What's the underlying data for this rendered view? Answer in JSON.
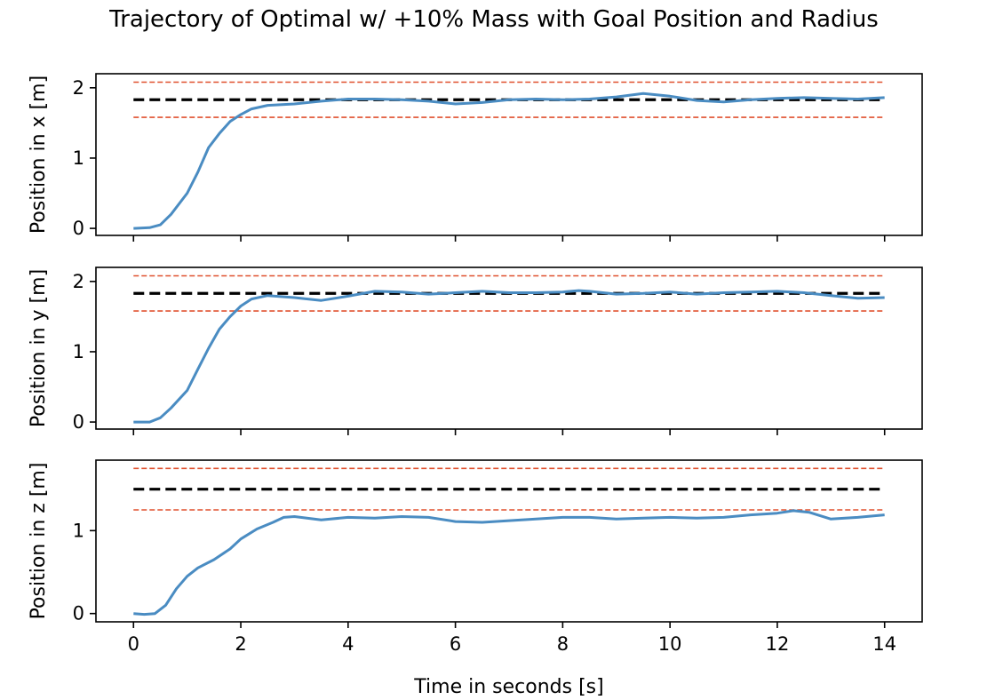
{
  "title": "Trajectory of Optimal w/ +10% Mass with Goal Position and Radius",
  "xlabel": "Time in seconds [s]",
  "colors": {
    "trajectory": "#4a8cc2",
    "goal": "#000000",
    "radius": "#e0502e"
  },
  "chart_data": [
    {
      "type": "line",
      "ylabel": "Position in x [m]",
      "xlim": [
        -0.7,
        14.7
      ],
      "ylim": [
        -0.1,
        2.2
      ],
      "xticks": [
        0,
        2,
        4,
        6,
        8,
        10,
        12,
        14
      ],
      "yticks": [
        0,
        1,
        2
      ],
      "goal": 1.83,
      "radius_lines": [
        1.58,
        2.08
      ],
      "series": [
        {
          "x": [
            0,
            0.3,
            0.5,
            0.7,
            1.0,
            1.2,
            1.4,
            1.6,
            1.8,
            2.0,
            2.2,
            2.5,
            3.0,
            3.5,
            4.0,
            4.5,
            5.0,
            5.5,
            6.0,
            6.5,
            7.0,
            7.5,
            8.0,
            8.5,
            9.0,
            9.5,
            10.0,
            10.5,
            11.0,
            11.5,
            12.0,
            12.5,
            13.0,
            13.5,
            14.0
          ],
          "y": [
            0.0,
            0.01,
            0.05,
            0.2,
            0.5,
            0.8,
            1.15,
            1.35,
            1.52,
            1.62,
            1.7,
            1.75,
            1.77,
            1.81,
            1.84,
            1.84,
            1.83,
            1.81,
            1.77,
            1.79,
            1.83,
            1.84,
            1.83,
            1.84,
            1.87,
            1.92,
            1.88,
            1.82,
            1.8,
            1.83,
            1.85,
            1.86,
            1.85,
            1.84,
            1.86
          ]
        }
      ]
    },
    {
      "type": "line",
      "ylabel": "Position in y [m]",
      "xlim": [
        -0.7,
        14.7
      ],
      "ylim": [
        -0.1,
        2.2
      ],
      "xticks": [
        0,
        2,
        4,
        6,
        8,
        10,
        12,
        14
      ],
      "yticks": [
        0,
        1,
        2
      ],
      "goal": 1.83,
      "radius_lines": [
        1.58,
        2.08
      ],
      "series": [
        {
          "x": [
            0,
            0.3,
            0.5,
            0.7,
            1.0,
            1.2,
            1.4,
            1.6,
            1.8,
            2.0,
            2.2,
            2.5,
            3.0,
            3.5,
            4.0,
            4.5,
            5.0,
            5.5,
            6.0,
            6.5,
            7.0,
            7.5,
            8.0,
            8.3,
            8.5,
            9.0,
            9.5,
            10.0,
            10.5,
            11.0,
            11.5,
            12.0,
            12.5,
            13.0,
            13.5,
            14.0
          ],
          "y": [
            0.0,
            0.0,
            0.06,
            0.2,
            0.45,
            0.75,
            1.05,
            1.32,
            1.5,
            1.65,
            1.75,
            1.8,
            1.77,
            1.73,
            1.79,
            1.86,
            1.85,
            1.82,
            1.84,
            1.86,
            1.84,
            1.84,
            1.85,
            1.87,
            1.86,
            1.82,
            1.83,
            1.85,
            1.82,
            1.84,
            1.85,
            1.86,
            1.84,
            1.8,
            1.76,
            1.77
          ]
        }
      ]
    },
    {
      "type": "line",
      "ylabel": "Position in z [m]",
      "xlim": [
        -0.7,
        14.7
      ],
      "ylim": [
        -0.1,
        1.85
      ],
      "xticks": [
        0,
        2,
        4,
        6,
        8,
        10,
        12,
        14
      ],
      "yticks": [
        0,
        1
      ],
      "goal": 1.5,
      "radius_lines": [
        1.25,
        1.75
      ],
      "series": [
        {
          "x": [
            0,
            0.2,
            0.4,
            0.6,
            0.8,
            1.0,
            1.2,
            1.5,
            1.8,
            2.0,
            2.3,
            2.6,
            2.8,
            3.0,
            3.5,
            4.0,
            4.5,
            5.0,
            5.5,
            6.0,
            6.5,
            7.0,
            7.5,
            8.0,
            8.5,
            9.0,
            9.5,
            10.0,
            10.5,
            11.0,
            11.5,
            12.0,
            12.3,
            12.6,
            13.0,
            13.5,
            14.0
          ],
          "y": [
            0.0,
            -0.01,
            0.0,
            0.1,
            0.3,
            0.45,
            0.55,
            0.65,
            0.78,
            0.9,
            1.02,
            1.1,
            1.16,
            1.17,
            1.13,
            1.16,
            1.15,
            1.17,
            1.16,
            1.11,
            1.1,
            1.12,
            1.14,
            1.16,
            1.16,
            1.14,
            1.15,
            1.16,
            1.15,
            1.16,
            1.19,
            1.21,
            1.24,
            1.22,
            1.14,
            1.16,
            1.19
          ]
        }
      ]
    }
  ]
}
